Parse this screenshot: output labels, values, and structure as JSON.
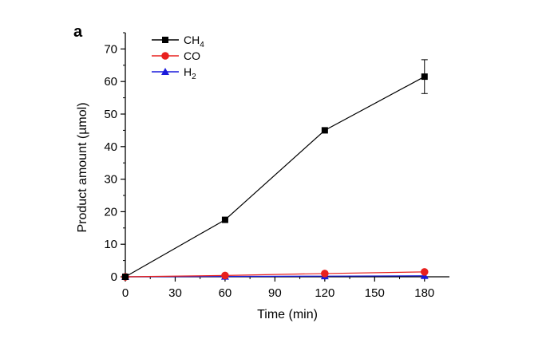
{
  "panel_label": "a",
  "chart_data": {
    "type": "line",
    "xlabel": "Time (min)",
    "ylabel": "Product amount (µmol)",
    "xlim": [
      0,
      195
    ],
    "ylim": [
      0,
      75
    ],
    "x_ticks": [
      0,
      30,
      60,
      90,
      120,
      150,
      180
    ],
    "y_ticks": [
      0,
      10,
      20,
      30,
      40,
      50,
      60,
      70
    ],
    "x": [
      0,
      60,
      120,
      180
    ],
    "grid": false,
    "legend_position": "top-left",
    "series": [
      {
        "name": "CH4",
        "legend_main": "CH",
        "legend_sub": "4",
        "color": "#000000",
        "marker": "square",
        "values": [
          0,
          17.5,
          45,
          61.5
        ],
        "error": [
          0,
          0,
          0,
          5.2
        ]
      },
      {
        "name": "CO",
        "legend_main": "CO",
        "legend_sub": "",
        "color": "#e8201e",
        "marker": "circle",
        "values": [
          0,
          0.4,
          1.0,
          1.5
        ],
        "error": [
          0,
          0,
          0,
          0
        ]
      },
      {
        "name": "H2",
        "legend_main": "H",
        "legend_sub": "2",
        "color": "#1a1adb",
        "marker": "triangle",
        "values": [
          0,
          0.1,
          0.2,
          0.3
        ],
        "error": [
          0,
          0,
          0,
          0
        ]
      }
    ]
  }
}
